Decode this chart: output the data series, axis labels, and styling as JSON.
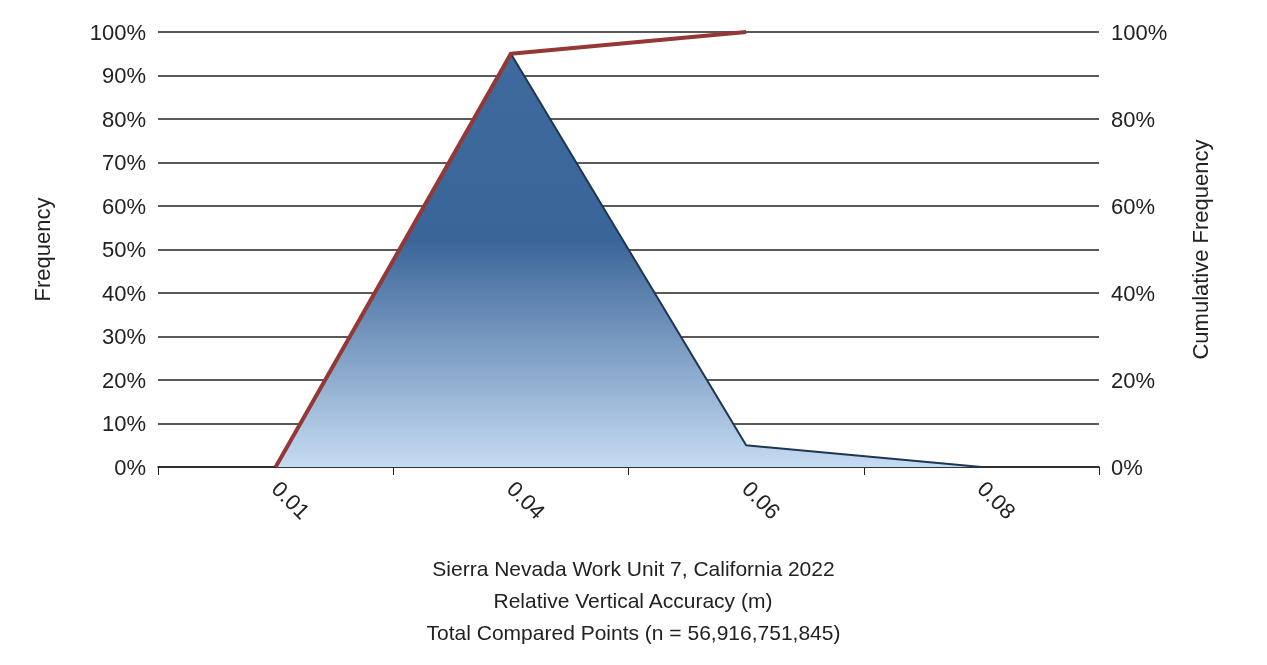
{
  "chart_data": {
    "type": "area",
    "categories": [
      "0.01",
      "0.04",
      "0.06",
      "0.08"
    ],
    "xlabel": "Relative Vertical Accuracy (m)",
    "ylabel": "Frequency",
    "y2label": "Cumulative Frequency",
    "annotations": [
      "Sierra Nevada Work Unit 7, California 2022",
      "Total Compared Points (n = 56,916,751,845)"
    ],
    "series": [
      {
        "color": "#3f6a9e",
        "values": [
          0,
          95,
          5,
          0
        ]
      },
      {
        "type": "line",
        "axis": "y2",
        "color": "#953735",
        "values": [
          0,
          95,
          100,
          null
        ]
      }
    ],
    "ylim": [
      0,
      100
    ],
    "yticks": [
      {
        "value": 0,
        "label": "0%"
      },
      {
        "value": 10,
        "label": "10%"
      },
      {
        "value": 20,
        "label": "20%"
      },
      {
        "value": 30,
        "label": "30%"
      },
      {
        "value": 40,
        "label": "40%"
      },
      {
        "value": 50,
        "label": "50%"
      },
      {
        "value": 60,
        "label": "60%"
      },
      {
        "value": 70,
        "label": "70%"
      },
      {
        "value": 80,
        "label": "80%"
      },
      {
        "value": 90,
        "label": "90%"
      },
      {
        "value": 100,
        "label": "100%"
      }
    ],
    "y2lim": [
      0,
      100
    ],
    "y2ticks": [
      {
        "value": 0,
        "label": "0%"
      },
      {
        "value": 20,
        "label": "20%"
      },
      {
        "value": 40,
        "label": "40%"
      },
      {
        "value": 60,
        "label": "60%"
      },
      {
        "value": 80,
        "label": "80%"
      },
      {
        "value": 100,
        "label": "100%"
      }
    ],
    "grid": "y",
    "marker": "none"
  }
}
